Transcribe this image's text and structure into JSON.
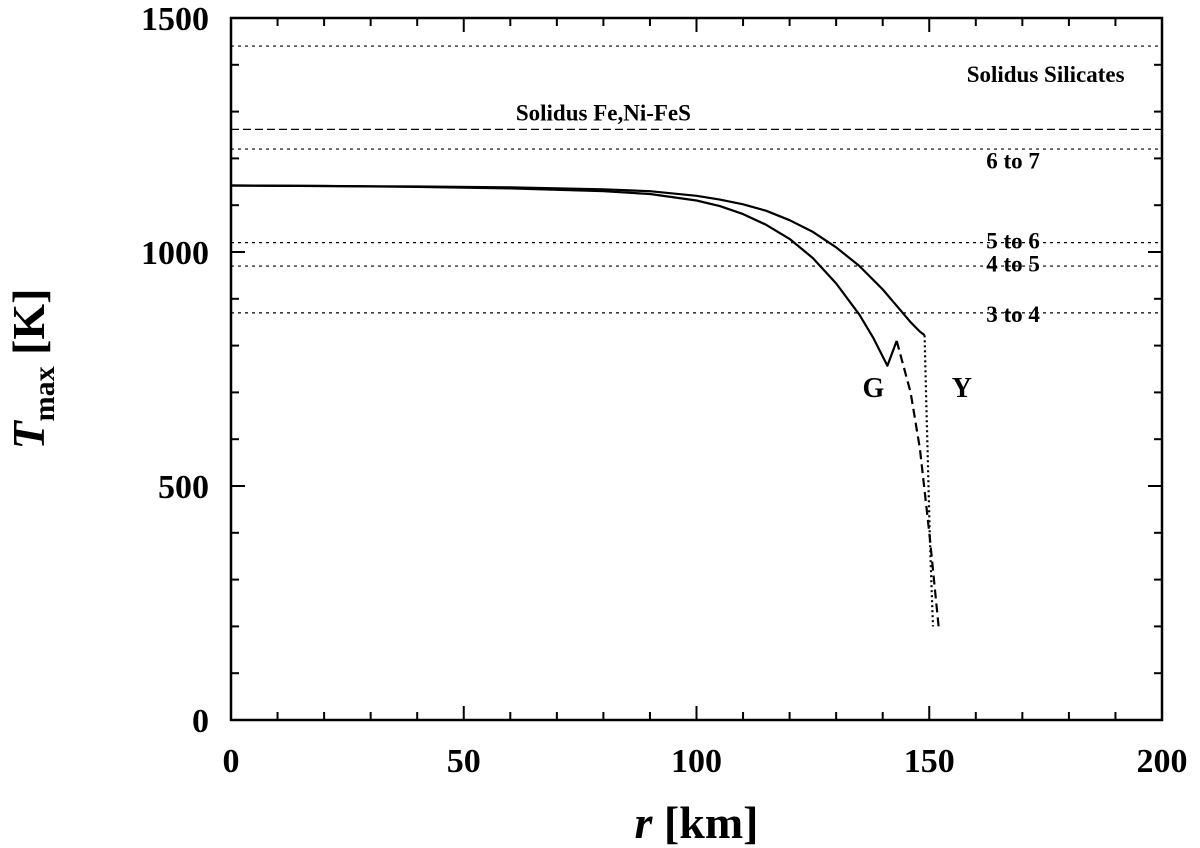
{
  "chart_data": {
    "type": "line",
    "xlabel_var": "r",
    "xlabel_unit": "[km]",
    "ylabel_var": "T",
    "ylabel_sub": "max",
    "ylabel_unit": "[K]",
    "xlim": [
      0,
      200
    ],
    "ylim": [
      0,
      1500
    ],
    "x_ticks": [
      0,
      50,
      100,
      150,
      200
    ],
    "y_ticks": [
      0,
      500,
      1000,
      1500
    ],
    "x_minor_step": 10,
    "y_minor_step": 100,
    "grid": false,
    "reference_lines": [
      {
        "y": 1440,
        "style": "dotted",
        "label": "Solidus Silicates",
        "label_x": 175,
        "label_y": 1380
      },
      {
        "y": 1262,
        "style": "dashed",
        "label": "Solidus Fe,Ni-FeS",
        "label_x": 80,
        "label_y": 1298
      },
      {
        "y": 1220,
        "style": "dotted",
        "label": "6 to 7",
        "label_x": 168,
        "label_y": 1195
      },
      {
        "y": 1020,
        "style": "dotted",
        "label": "5 to 6",
        "label_x": 168,
        "label_y": 1025
      },
      {
        "y": 970,
        "style": "dotted",
        "label": "4 to 5",
        "label_x": 168,
        "label_y": 975
      },
      {
        "y": 870,
        "style": "dotted",
        "label": "3 to 4",
        "label_x": 168,
        "label_y": 868
      }
    ],
    "series": [
      {
        "name": "G",
        "label_x": 138,
        "label_y": 690,
        "segments": [
          {
            "style": "solid",
            "x": [
              0,
              20,
              40,
              60,
              80,
              90,
              100,
              105,
              110,
              115,
              120,
              125,
              130,
              135,
              138,
              141,
              143
            ],
            "y": [
              1142,
              1141,
              1139,
              1136,
              1130,
              1124,
              1110,
              1098,
              1081,
              1058,
              1028,
              987,
              933,
              866,
              816,
              757,
              810
            ]
          },
          {
            "style": "dashed",
            "x": [
              143,
              146,
              148,
              150,
              152
            ],
            "y": [
              810,
              700,
              580,
              400,
              200
            ]
          }
        ]
      },
      {
        "name": "Y",
        "label_x": 157,
        "label_y": 690,
        "segments": [
          {
            "style": "solid",
            "x": [
              0,
              20,
              40,
              60,
              80,
              90,
              100,
              105,
              110,
              115,
              120,
              125,
              130,
              135,
              140,
              143,
              146,
              148,
              149
            ],
            "y": [
              1142,
              1141,
              1140,
              1138,
              1134,
              1130,
              1120,
              1112,
              1102,
              1088,
              1068,
              1043,
              1010,
              970,
              920,
              885,
              850,
              830,
              822
            ]
          },
          {
            "style": "dotted",
            "x": [
              149,
              149.3,
              149.7,
              150.1,
              150.5,
              150.8
            ],
            "y": [
              822,
              700,
              550,
              400,
              280,
              200
            ]
          }
        ]
      }
    ]
  }
}
